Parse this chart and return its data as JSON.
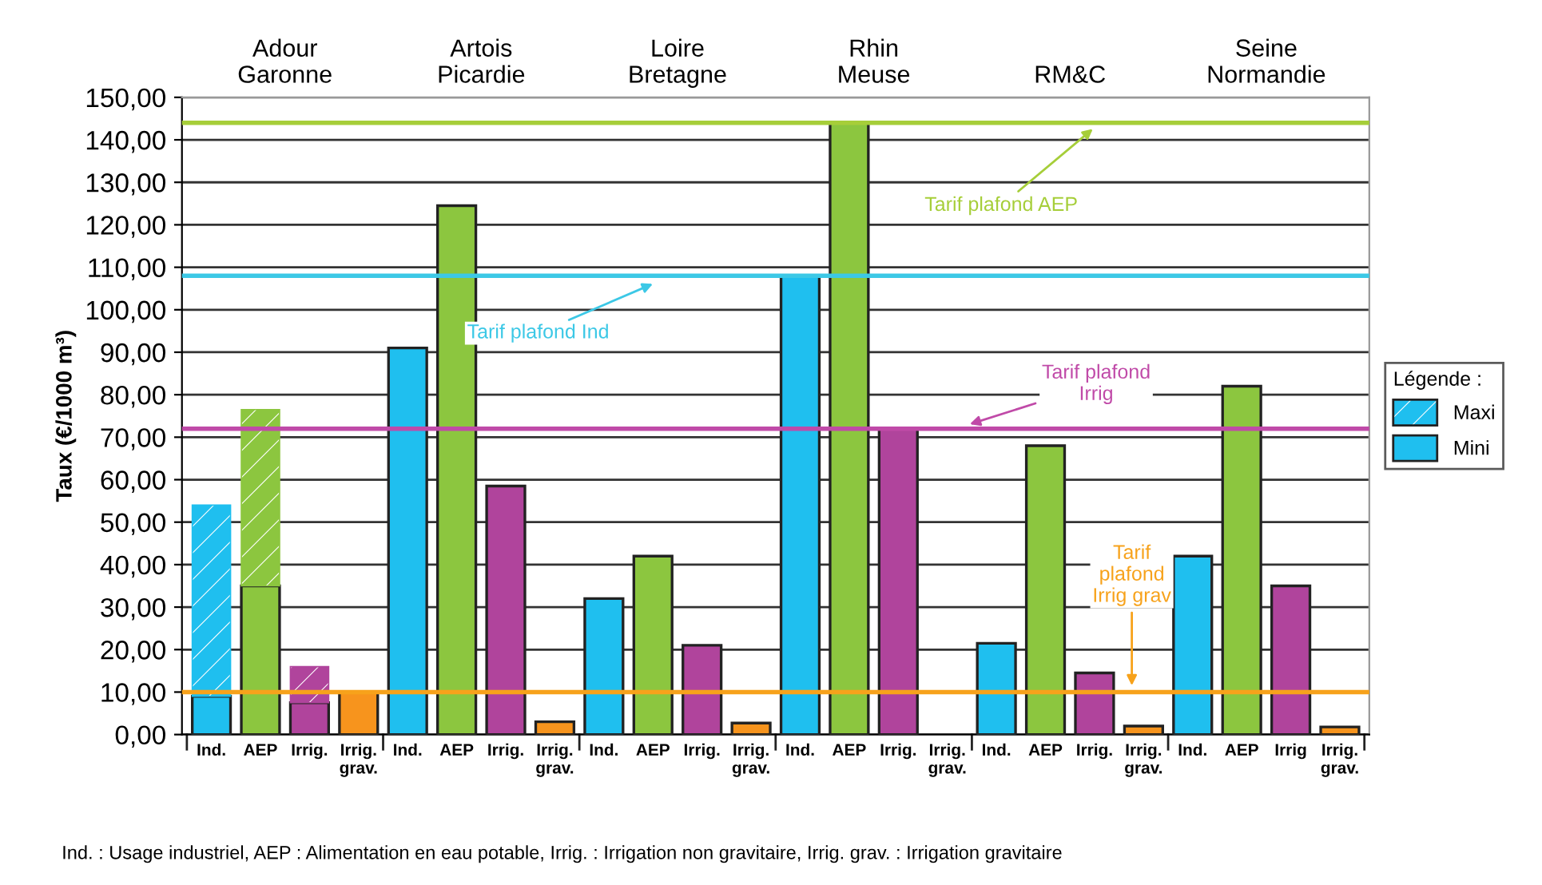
{
  "chart_data": {
    "type": "bar",
    "stacked": true,
    "ylabel": "Taux (€/1000 m³)",
    "legend_title": "Légende :",
    "legend": "right",
    "grid": "y",
    "categories": [
      "Ind.",
      "AEP",
      "Irrig.",
      "Irrig.\ngrav.",
      "Ind.",
      "AEP",
      "Irrig.",
      "Irrig.\ngrav.",
      "Ind.",
      "AEP",
      "Irrig.",
      "Irrig.\ngrav.",
      "Ind.",
      "AEP",
      "Irrig.",
      "Irrig.\ngrav.",
      "Ind.",
      "AEP",
      "Irrig.",
      "Irrig.\ngrav.",
      "Ind.",
      "AEP",
      "Irrig",
      "Irrig.\ngrav."
    ],
    "series": [
      {
        "name": "Mini",
        "color": "#1fbfef",
        "colors": [
          "#1fbfef",
          "#8cc63f",
          "#b0449c",
          "#f7941d",
          "#1fbfef",
          "#8cc63f",
          "#b0449c",
          "#f7941d",
          "#1fbfef",
          "#8cc63f",
          "#b0449c",
          "#f7941d",
          "#1fbfef",
          "#8cc63f",
          "#b0449c",
          "#f7941d",
          "#1fbfef",
          "#8cc63f",
          "#b0449c",
          "#f7941d",
          "#1fbfef",
          "#8cc63f",
          "#b0449c",
          "#f7941d"
        ],
        "values": [
          9,
          35,
          7.5,
          10,
          91,
          124.5,
          58.5,
          3,
          32,
          42,
          21,
          2.7,
          108,
          144,
          72,
          null,
          21.5,
          68,
          14.5,
          2,
          42,
          82,
          35,
          1.8
        ]
      },
      {
        "name": "Maxi",
        "color": "#1fbfef",
        "colors": [
          "#1fbfef",
          "#8cc63f",
          "#b0449c",
          "#f7941d",
          "#1fbfef",
          "#8cc63f",
          "#b0449c",
          "#f7941d",
          "#1fbfef",
          "#8cc63f",
          "#b0449c",
          "#f7941d",
          "#1fbfef",
          "#8cc63f",
          "#b0449c",
          "#f7941d",
          "#1fbfef",
          "#8cc63f",
          "#b0449c",
          "#f7941d",
          "#1fbfef",
          "#8cc63f",
          "#b0449c",
          "#f7941d"
        ],
        "values": [
          45,
          41.5,
          8.5,
          null,
          null,
          null,
          null,
          null,
          null,
          null,
          null,
          null,
          null,
          null,
          null,
          null,
          null,
          null,
          null,
          null,
          null,
          null,
          null,
          null
        ]
      }
    ],
    "ylim": [
      0,
      150
    ],
    "yticks": [
      {
        "value": 0,
        "label": "0,00"
      },
      {
        "value": 10,
        "label": "10,00"
      },
      {
        "value": 20,
        "label": "20,00"
      },
      {
        "value": 30,
        "label": "30,00"
      },
      {
        "value": 40,
        "label": "40,00"
      },
      {
        "value": 50,
        "label": "50,00"
      },
      {
        "value": 60,
        "label": "60,00"
      },
      {
        "value": 70,
        "label": "70,00"
      },
      {
        "value": 80,
        "label": "80,00"
      },
      {
        "value": 90,
        "label": "90,00"
      },
      {
        "value": 100,
        "label": "100,00"
      },
      {
        "value": 110,
        "label": "110,00"
      },
      {
        "value": 120,
        "label": "120,00"
      },
      {
        "value": 130,
        "label": "130,00"
      },
      {
        "value": 140,
        "label": "140,00"
      },
      {
        "value": 150,
        "label": "150,00"
      }
    ],
    "ref_lines": [
      {
        "axis": "y",
        "value": 144,
        "label": "Tarif plafond AEP",
        "color": "#a6ce39"
      },
      {
        "axis": "y",
        "value": 108,
        "label": "Tarif plafond Ind",
        "color": "#3cc8e6"
      },
      {
        "axis": "y",
        "value": 72,
        "label": "Tarif plafond\nIrrig",
        "color": "#c04aa8"
      },
      {
        "axis": "y",
        "value": 10,
        "label": "Tarif\nplafond\nIrrig grav",
        "color": "#f7a21b"
      }
    ],
    "annotations": [
      "Adour\nGaronne",
      "Artois\nPicardie",
      "Loire\nBretagne",
      "Rhin\nMeuse",
      "RM&C",
      "Seine\nNormandie",
      "Ind. : Usage industriel, AEP : Alimentation en eau potable, Irrig. : Irrigation non gravitaire, Irrig. grav. : Irrigation gravitaire"
    ]
  }
}
